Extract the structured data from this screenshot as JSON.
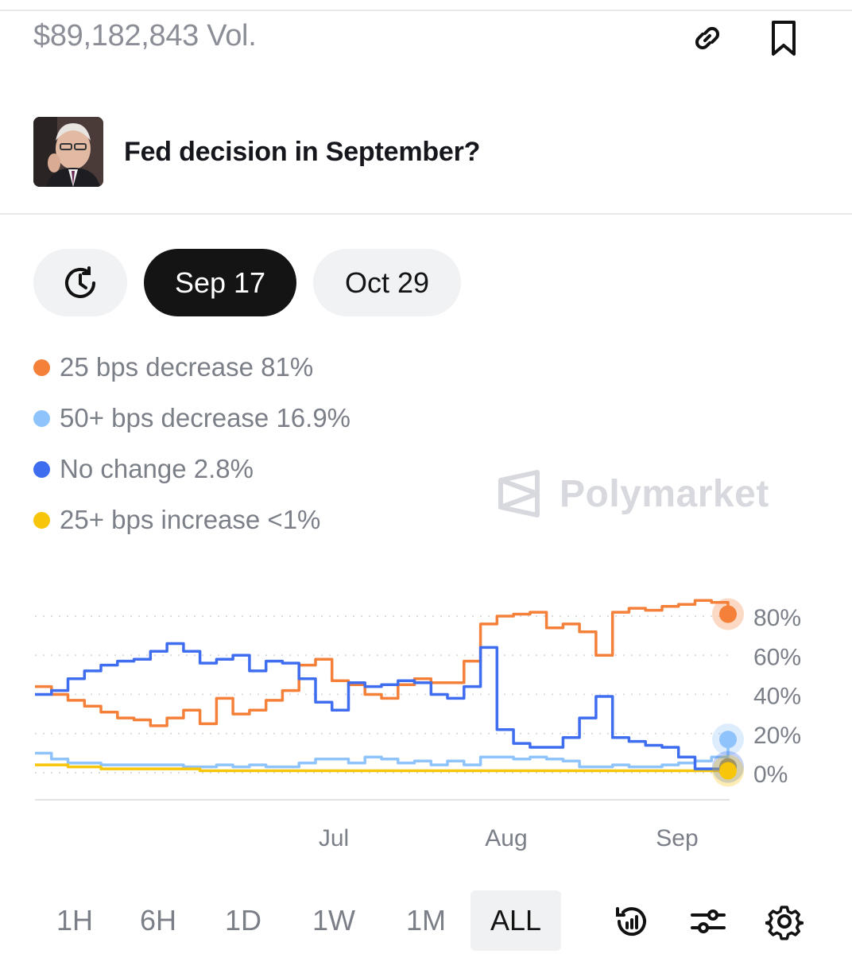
{
  "header": {
    "volume": "$89,182,843 Vol.",
    "link_icon": "link-icon",
    "bookmark_icon": "bookmark-icon"
  },
  "market": {
    "title": "Fed decision in September?",
    "avatar_icon": "portrait-photo"
  },
  "date_pills": [
    {
      "label": "history-clock-icon",
      "selected": false
    },
    {
      "label": "Sep 17",
      "selected": true
    },
    {
      "label": "Oct 29",
      "selected": false
    }
  ],
  "legend": [
    {
      "label": "25 bps decrease 81%",
      "color": "#f4803a"
    },
    {
      "label": "50+ bps decrease 16.9%",
      "color": "#8ec4fb"
    },
    {
      "label": "No change 2.8%",
      "color": "#3f6df0"
    },
    {
      "label": "25+ bps increase <1%",
      "color": "#f7c509"
    }
  ],
  "watermark": {
    "text": "Polymarket",
    "color": "#d7d9de"
  },
  "chart_data": {
    "type": "line",
    "x_ticks": [
      "Jul",
      "Aug",
      "Sep"
    ],
    "y_ticks": [
      "80%",
      "60%",
      "40%",
      "20%",
      "0%"
    ],
    "ylim": [
      0,
      85
    ],
    "series": [
      {
        "name": "25 bps decrease",
        "color": "#f4803a",
        "values": [
          44,
          40,
          37,
          34,
          31,
          28,
          27,
          24,
          28,
          32,
          25,
          38,
          30,
          32,
          37,
          42,
          55,
          58,
          47,
          45,
          40,
          38,
          45,
          48,
          46,
          46,
          57,
          76,
          80,
          81,
          82,
          74,
          76,
          72,
          60,
          82,
          84,
          83,
          85,
          86,
          88,
          87,
          81
        ]
      },
      {
        "name": "50+ bps decrease",
        "color": "#8ec4fb",
        "values": [
          10,
          7,
          5,
          5,
          4,
          4,
          4,
          4,
          4,
          3,
          3,
          4,
          3,
          4,
          3,
          3,
          5,
          7,
          7,
          5,
          8,
          7,
          5,
          6,
          4,
          6,
          4,
          8,
          8,
          7,
          8,
          7,
          6,
          3,
          3,
          4,
          3,
          3,
          4,
          5,
          6,
          8,
          17
        ]
      },
      {
        "name": "No change",
        "color": "#3f6df0",
        "values": [
          40,
          42,
          48,
          52,
          55,
          57,
          58,
          62,
          66,
          62,
          56,
          58,
          60,
          52,
          57,
          56,
          48,
          36,
          32,
          46,
          44,
          45,
          47,
          46,
          40,
          38,
          44,
          64,
          22,
          15,
          13,
          13,
          18,
          28,
          39,
          18,
          16,
          14,
          13,
          8,
          2,
          2,
          3
        ]
      },
      {
        "name": "25+ bps increase",
        "color": "#f7c509",
        "values": [
          4,
          4,
          3,
          3,
          2,
          2,
          2,
          2,
          2,
          2,
          1,
          1,
          1,
          1,
          1,
          1,
          1,
          1,
          1,
          1,
          1,
          1,
          1,
          1,
          1,
          1,
          1,
          1,
          1,
          1,
          1,
          1,
          1,
          1,
          1,
          1,
          1,
          1,
          1,
          1,
          1,
          1,
          1
        ]
      }
    ]
  },
  "time_ranges": [
    {
      "label": "1H",
      "active": false
    },
    {
      "label": "6H",
      "active": false
    },
    {
      "label": "1D",
      "active": false
    },
    {
      "label": "1W",
      "active": false
    },
    {
      "label": "1M",
      "active": false
    },
    {
      "label": "ALL",
      "active": true
    }
  ],
  "tools": {
    "history_icon": "history-chart-icon",
    "settings_icon": "sliders-icon",
    "gear_icon": "gear-icon"
  }
}
